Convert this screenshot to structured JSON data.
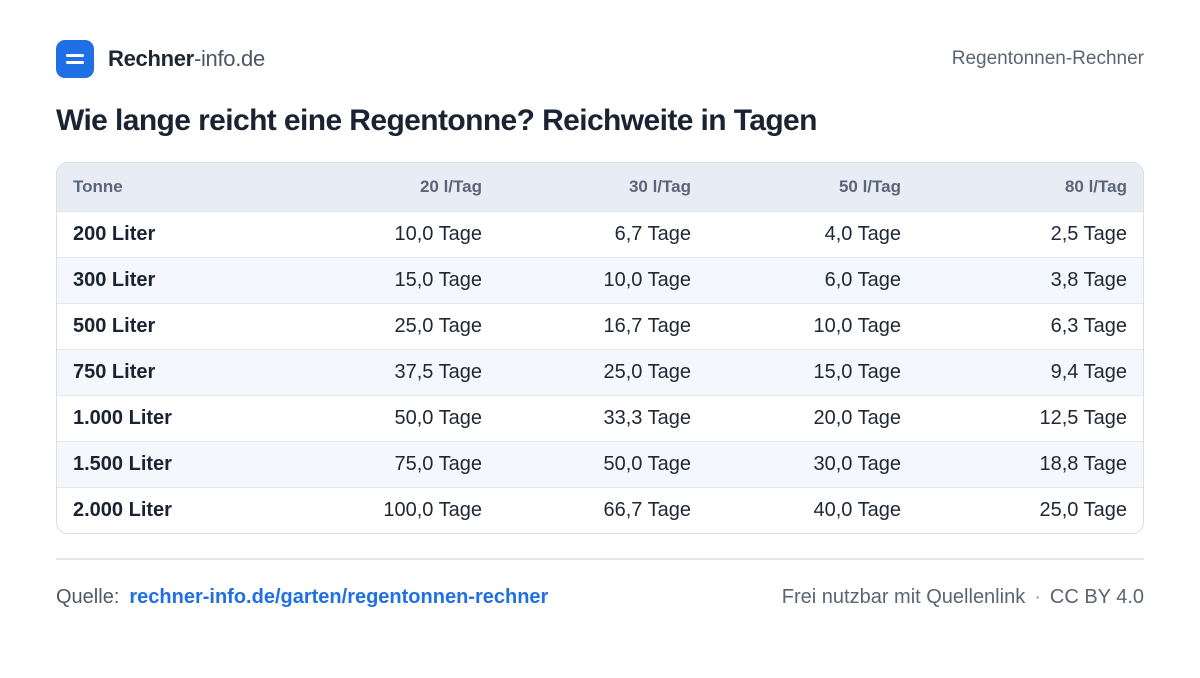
{
  "header": {
    "brand_bold": "Rechner",
    "brand_light": "-info.de",
    "logo_icon": "equals-icon",
    "logo_color": "#1f6fe5",
    "right_label": "Regentonnen-Rechner"
  },
  "title": "Wie lange reicht eine Regentonne? Reichweite in Tagen",
  "table": {
    "columns": [
      "Tonne",
      "20 l/Tag",
      "30 l/Tag",
      "50 l/Tag",
      "80 l/Tag"
    ],
    "rows": [
      [
        "200 Liter",
        "10,0 Tage",
        "6,7 Tage",
        "4,0 Tage",
        "2,5 Tage"
      ],
      [
        "300 Liter",
        "15,0 Tage",
        "10,0 Tage",
        "6,0 Tage",
        "3,8 Tage"
      ],
      [
        "500 Liter",
        "25,0 Tage",
        "16,7 Tage",
        "10,0 Tage",
        "6,3 Tage"
      ],
      [
        "750 Liter",
        "37,5 Tage",
        "25,0 Tage",
        "15,0 Tage",
        "9,4 Tage"
      ],
      [
        "1.000 Liter",
        "50,0 Tage",
        "33,3 Tage",
        "20,0 Tage",
        "12,5 Tage"
      ],
      [
        "1.500 Liter",
        "75,0 Tage",
        "50,0 Tage",
        "30,0 Tage",
        "18,8 Tage"
      ],
      [
        "2.000 Liter",
        "100,0 Tage",
        "66,7 Tage",
        "40,0 Tage",
        "25,0 Tage"
      ]
    ]
  },
  "footer": {
    "source_label": "Quelle:",
    "source_link": "rechner-info.de/garten/regentonnen-rechner",
    "usage": "Frei nutzbar mit Quellenlink",
    "separator": "·",
    "license": "CC BY 4.0"
  }
}
